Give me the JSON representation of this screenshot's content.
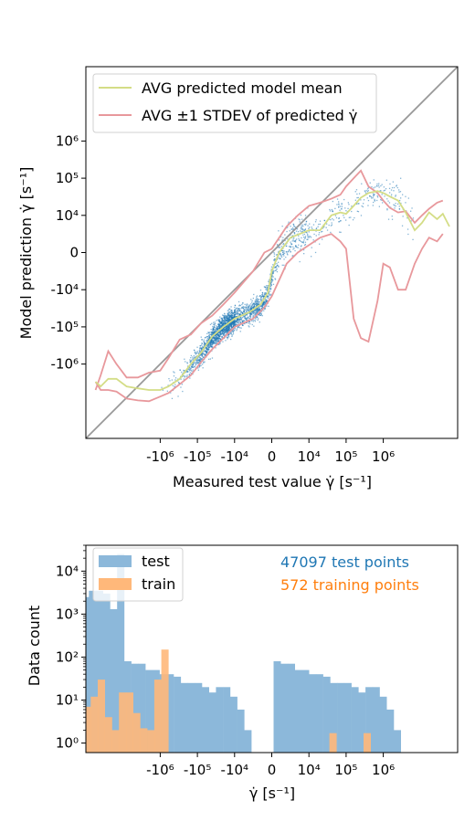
{
  "colors": {
    "test_blue": "#1f77b4",
    "hist_test": "#8cb8da",
    "hist_train": "#ffb87a",
    "train_orange": "#ff7f0e",
    "mean_line": "#d4dd86",
    "std_line": "#e8989c",
    "diagonal": "#999999"
  },
  "chart_data": [
    {
      "type": "scatter",
      "xlabel": "Measured test value γ̇ [s⁻¹]",
      "ylabel": "Model prediction γ̇ [s⁻¹]",
      "scale": "symlog",
      "linthresh": 10000,
      "xlim": [
        -100000000,
        100000000
      ],
      "ylim": [
        -100000000,
        100000000
      ],
      "x_ticks": [
        {
          "value": -1000000,
          "label": "-10⁶"
        },
        {
          "value": -100000,
          "label": "-10⁵"
        },
        {
          "value": -10000,
          "label": "-10⁴"
        },
        {
          "value": 0,
          "label": "0"
        },
        {
          "value": 10000,
          "label": "10⁴"
        },
        {
          "value": 100000,
          "label": "10⁵"
        },
        {
          "value": 1000000,
          "label": "10⁶"
        }
      ],
      "y_ticks": [
        {
          "value": 1000000,
          "label": "10⁶"
        },
        {
          "value": 100000,
          "label": "10⁵"
        },
        {
          "value": 10000,
          "label": "10⁴"
        },
        {
          "value": 0,
          "label": "0"
        },
        {
          "value": -10000,
          "label": "-10⁴"
        },
        {
          "value": -100000,
          "label": "-10⁵"
        },
        {
          "value": -1000000,
          "label": "-10⁶"
        }
      ],
      "legend": {
        "placement": "top-left",
        "entries": [
          {
            "label": "AVG predicted model mean",
            "color": "#d4dd86"
          },
          {
            "label": "AVG ±1 STDEV of predicted γ̇",
            "color": "#e8989c"
          }
        ]
      },
      "diagonal": {
        "from": [
          -100000000,
          -100000000
        ],
        "to": [
          100000000,
          100000000
        ]
      },
      "mean_curve": {
        "x": [
          -55000000,
          -40000000,
          -25000000,
          -15000000,
          -8000000,
          -4000000,
          -2000000,
          -1000000,
          -600000,
          -300000,
          -150000,
          -80000,
          -40000,
          -20000,
          -10000,
          -6000,
          -3000,
          -1000,
          0,
          2000,
          5000,
          10000,
          20000,
          40000,
          70000,
          100000,
          160000,
          250000,
          400000,
          700000,
          1000000,
          1500000,
          2500000,
          4000000,
          7000000,
          11000000,
          17000000,
          28000000,
          40000000,
          60000000
        ],
        "y": [
          -3000000,
          -4000000,
          -2500000,
          -2500000,
          -4000000,
          -4500000,
          -5000000,
          -5000000,
          -4000000,
          -2500000,
          -1000000,
          -500000,
          -180000,
          -100000,
          -60000,
          -40000,
          -25000,
          -12000,
          -5000,
          0,
          4000,
          6000,
          6000,
          10000,
          12000,
          11000,
          18000,
          30000,
          40000,
          45000,
          40000,
          32000,
          25000,
          12000,
          6000,
          8000,
          12000,
          9000,
          11000,
          7000
        ]
      },
      "std_upper": {
        "x": [
          -55000000,
          -40000000,
          -25000000,
          -15000000,
          -8000000,
          -4000000,
          -2000000,
          -1000000,
          -600000,
          -300000,
          -150000,
          -80000,
          -40000,
          -20000,
          -10000,
          -5000,
          -2000,
          0,
          4000,
          7000,
          10000,
          20000,
          40000,
          70000,
          100000,
          160000,
          250000,
          400000,
          700000,
          1000000,
          1500000,
          2500000,
          4000000,
          7000000,
          11000000,
          17000000,
          28000000,
          40000000
        ],
        "y": [
          -5000000,
          -2000000,
          -450000,
          -1000000,
          -2300000,
          -2300000,
          -1700000,
          -1500000,
          -700000,
          -220000,
          -160000,
          -80000,
          -50000,
          -25000,
          -12000,
          -5000,
          0,
          1000,
          7000,
          10000,
          18000,
          22000,
          28000,
          36000,
          60000,
          100000,
          160000,
          60000,
          40000,
          25000,
          16000,
          12000,
          13000,
          8000,
          10000,
          15000,
          22000,
          25000
        ]
      },
      "std_lower": {
        "x": [
          -55000000,
          -40000000,
          -25000000,
          -15000000,
          -8000000,
          -4000000,
          -2000000,
          -1000000,
          -600000,
          -300000,
          -150000,
          -80000,
          -40000,
          -20000,
          -10000,
          -5000,
          -2000,
          0,
          4000,
          7000,
          10000,
          20000,
          40000,
          70000,
          100000,
          160000,
          250000,
          400000,
          700000,
          1000000,
          1500000,
          2500000,
          4000000,
          7000000,
          11000000,
          17000000,
          28000000,
          40000000
        ],
        "y": [
          -3000000,
          -5000000,
          -5000000,
          -5500000,
          -8500000,
          -9500000,
          -10000000,
          -7500000,
          -6000000,
          -3500000,
          -2000000,
          -900000,
          -400000,
          -200000,
          -100000,
          -60000,
          -30000,
          -15000,
          -3000,
          0,
          2000,
          4000,
          5000,
          3000,
          1000,
          -60000,
          -200000,
          -250000,
          -20000,
          -3000,
          -4000,
          -10000,
          -10000,
          -3000,
          1000,
          4000,
          3000,
          5000
        ]
      }
    },
    {
      "type": "bar",
      "xlabel": "γ̇ [s⁻¹]",
      "ylabel": "Data count",
      "scale_x": "symlog",
      "scale_y": "log",
      "ylim": [
        0.6,
        40000
      ],
      "x_ticks": [
        {
          "value": -1000000,
          "label": "-10⁶"
        },
        {
          "value": -100000,
          "label": "-10⁵"
        },
        {
          "value": -10000,
          "label": "-10⁴"
        },
        {
          "value": 0,
          "label": "0"
        },
        {
          "value": 10000,
          "label": "10⁴"
        },
        {
          "value": 100000,
          "label": "10⁵"
        },
        {
          "value": 1000000,
          "label": "10⁶"
        }
      ],
      "y_ticks": [
        {
          "value": 1,
          "label": "10⁰"
        },
        {
          "value": 10,
          "label": "10¹"
        },
        {
          "value": 100,
          "label": "10²"
        },
        {
          "value": 1000,
          "label": "10³"
        },
        {
          "value": 10000,
          "label": "10⁴"
        }
      ],
      "legend": {
        "placement": "top-left",
        "entries": [
          {
            "label": "test",
            "color": "#8cb8da"
          },
          {
            "label": "train",
            "color": "#ffb87a"
          }
        ]
      },
      "annotations": [
        {
          "text": "47097 test points",
          "color": "#1f77b4"
        },
        {
          "text": "572 training points",
          "color": "#ff7f0e"
        }
      ],
      "series": [
        {
          "name": "test",
          "bins_left_pos": [
            -8.15,
            -7.96,
            -7.77,
            -7.58,
            -7.39,
            -7.2,
            -7.01,
            -6.82,
            -6.63,
            -6.44,
            -6.25,
            -6.06,
            -5.87,
            -5.68,
            -5.49,
            -5.3,
            -5.11,
            -4.92,
            -4.73,
            -4.54,
            -4.35,
            -4.16,
            -3.97,
            -3.78,
            -3.59,
            -3.4,
            -3.21,
            -3.02,
            -2.83,
            -2.64,
            -2.45,
            -2.26,
            -2.07,
            -1.88,
            -1.69,
            -1.5,
            -1.31,
            -1.12,
            -0.93,
            -0.74
          ],
          "values": [
            3,
            1.5,
            4,
            8,
            30,
            20,
            45,
            60,
            120,
            180,
            200,
            400,
            600,
            800,
            1500,
            1800,
            2500,
            3500,
            3500,
            3000,
            1300,
            25000,
            80,
            70,
            70,
            50,
            50,
            40,
            40,
            35,
            25,
            25,
            25,
            20,
            15,
            20,
            20,
            12,
            6,
            2
          ],
          "bin_width": 0.19
        },
        {
          "name": "train",
          "bins": [
            {
              "x": -6.42,
              "v": 1.7
            },
            {
              "x": -5.82,
              "v": 2.2
            },
            {
              "x": -5.63,
              "v": 15
            },
            {
              "x": -5.44,
              "v": 7
            },
            {
              "x": -5.25,
              "v": 50
            },
            {
              "x": -5.06,
              "v": 7
            },
            {
              "x": -4.87,
              "v": 12
            },
            {
              "x": -4.68,
              "v": 30
            },
            {
              "x": -4.49,
              "v": 4
            },
            {
              "x": -4.3,
              "v": 2
            },
            {
              "x": -4.11,
              "v": 15
            },
            {
              "x": -3.92,
              "v": 15
            },
            {
              "x": -3.73,
              "v": 5
            },
            {
              "x": -3.54,
              "v": 2.2
            },
            {
              "x": -3.35,
              "v": 2
            },
            {
              "x": -3.16,
              "v": 30
            },
            {
              "x": -2.97,
              "v": 150
            },
            {
              "x": 1.55,
              "v": 1.7
            },
            {
              "x": 2.47,
              "v": 1.7
            }
          ],
          "bin_width": 0.19
        }
      ]
    }
  ]
}
